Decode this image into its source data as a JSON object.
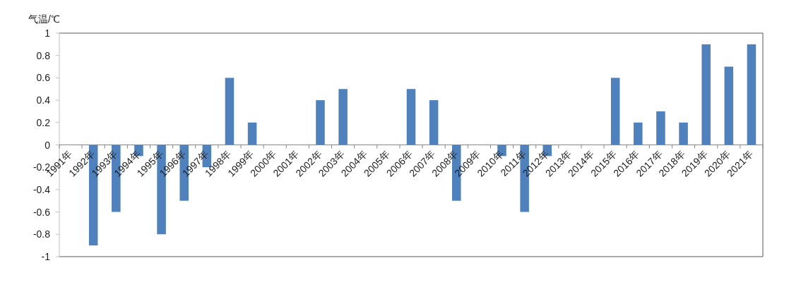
{
  "chart_data": {
    "type": "bar",
    "ylabel": "气温/℃",
    "categories": [
      "1991年",
      "1992年",
      "1993年",
      "1994年",
      "1995年",
      "1996年",
      "1997年",
      "1998年",
      "1999年",
      "2000年",
      "2001年",
      "2002年",
      "2003年",
      "2004年",
      "2005年",
      "2006年",
      "2007年",
      "2008年",
      "2009年",
      "2010年",
      "2011年",
      "2012年",
      "2013年",
      "2014年",
      "2015年",
      "2016年",
      "2017年",
      "2018年",
      "2019年",
      "2020年",
      "2021年"
    ],
    "values": [
      0,
      -0.9,
      -0.6,
      -0.1,
      -0.8,
      -0.5,
      -0.2,
      0.6,
      0.2,
      0,
      0,
      0.4,
      0.5,
      0,
      0,
      0.5,
      0.4,
      -0.5,
      0,
      -0.1,
      -0.6,
      -0.1,
      0,
      0,
      0.6,
      0.2,
      0.3,
      0.2,
      0.9,
      0.7,
      0.9
    ],
    "color": "#4f81bd",
    "ylim": [
      -1,
      1
    ],
    "yticks": [
      -1,
      -0.8,
      -0.6,
      -0.4,
      -0.2,
      0,
      0.2,
      0.4,
      0.6,
      0.8,
      1
    ]
  }
}
